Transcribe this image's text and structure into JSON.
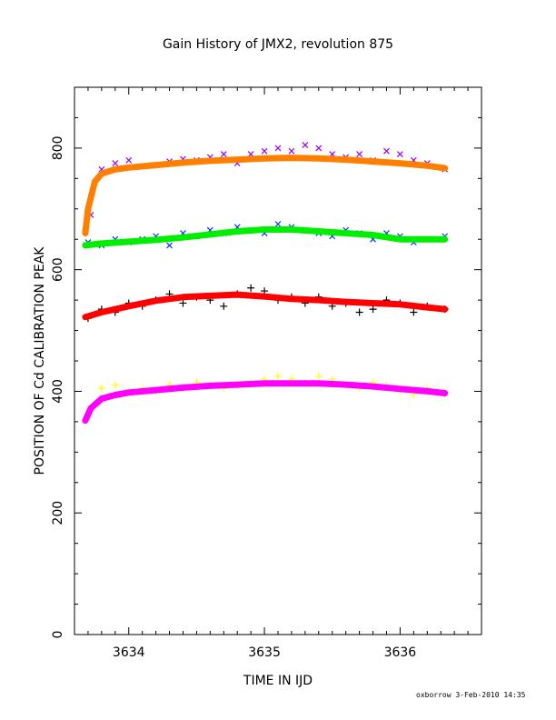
{
  "chart_data": {
    "type": "scatter",
    "title": "Gain History of JMX2, revolution 875",
    "xlabel": "TIME IN IJD",
    "ylabel": "POSITION OF Cd CALIBRATION PEAK",
    "xlim": [
      3633.6,
      3636.6
    ],
    "ylim": [
      0,
      900
    ],
    "xticks": [
      3634,
      3635,
      3636
    ],
    "xtick_labels": [
      "3634",
      "3635",
      "3636"
    ],
    "yticks": [
      0,
      200,
      400,
      600,
      800
    ],
    "ytick_labels": [
      "0",
      "200",
      "400",
      "600",
      "800"
    ],
    "grid": false,
    "legend": "none",
    "series": [
      {
        "marker": "x",
        "color": "#9900ff",
        "role": "points",
        "x": [
          3633.72,
          3633.8,
          3633.9,
          3634.0,
          3634.1,
          3634.2,
          3634.3,
          3634.4,
          3634.5,
          3634.6,
          3634.7,
          3634.8,
          3634.9,
          3635.0,
          3635.1,
          3635.2,
          3635.3,
          3635.4,
          3635.5,
          3635.6,
          3635.7,
          3635.8,
          3635.9,
          3636.0,
          3636.1,
          3636.2,
          3636.33
        ],
        "y": [
          690,
          765,
          775,
          780,
          770,
          772,
          778,
          782,
          780,
          785,
          790,
          775,
          790,
          795,
          800,
          795,
          805,
          800,
          790,
          785,
          790,
          780,
          795,
          790,
          780,
          775,
          765
        ]
      },
      {
        "marker": "line",
        "color": "#ff8000",
        "role": "fit",
        "x": [
          3633.68,
          3633.7,
          3633.75,
          3633.8,
          3633.9,
          3634.0,
          3634.2,
          3634.4,
          3634.6,
          3634.8,
          3635.0,
          3635.2,
          3635.4,
          3635.6,
          3635.8,
          3636.0,
          3636.2,
          3636.33
        ],
        "y": [
          660,
          700,
          745,
          758,
          765,
          768,
          772,
          776,
          779,
          781,
          783,
          784,
          783,
          781,
          778,
          775,
          771,
          767
        ]
      },
      {
        "marker": "x",
        "color": "#0033ff",
        "role": "points",
        "x": [
          3633.7,
          3633.8,
          3633.9,
          3634.0,
          3634.1,
          3634.2,
          3634.3,
          3634.4,
          3634.5,
          3634.6,
          3634.7,
          3634.8,
          3634.9,
          3635.0,
          3635.1,
          3635.2,
          3635.3,
          3635.4,
          3635.5,
          3635.6,
          3635.7,
          3635.8,
          3635.9,
          3636.0,
          3636.1,
          3636.2,
          3636.33
        ],
        "y": [
          645,
          640,
          650,
          645,
          650,
          655,
          640,
          660,
          655,
          665,
          660,
          670,
          665,
          660,
          675,
          670,
          665,
          660,
          655,
          665,
          660,
          650,
          660,
          655,
          645,
          650,
          655
        ]
      },
      {
        "marker": "line",
        "color": "#00ee00",
        "role": "fit",
        "x": [
          3633.68,
          3633.8,
          3634.0,
          3634.2,
          3634.4,
          3634.6,
          3634.8,
          3635.0,
          3635.2,
          3635.4,
          3635.6,
          3635.8,
          3636.0,
          3636.2,
          3636.33
        ],
        "y": [
          640,
          643,
          646,
          649,
          653,
          658,
          663,
          666,
          666,
          663,
          660,
          657,
          650,
          650,
          650
        ]
      },
      {
        "marker": "+",
        "color": "#000000",
        "role": "points",
        "x": [
          3633.7,
          3633.8,
          3633.9,
          3634.0,
          3634.1,
          3634.2,
          3634.3,
          3634.4,
          3634.5,
          3634.6,
          3634.7,
          3634.8,
          3634.9,
          3635.0,
          3635.1,
          3635.2,
          3635.3,
          3635.4,
          3635.5,
          3635.6,
          3635.7,
          3635.8,
          3635.9,
          3636.0,
          3636.1,
          3636.2,
          3636.33
        ],
        "y": [
          520,
          535,
          530,
          545,
          540,
          550,
          560,
          545,
          555,
          550,
          540,
          560,
          570,
          565,
          550,
          555,
          545,
          555,
          540,
          545,
          530,
          535,
          550,
          545,
          530,
          540,
          535
        ]
      },
      {
        "marker": "line",
        "color": "#ff0000",
        "role": "fit",
        "x": [
          3633.68,
          3633.8,
          3634.0,
          3634.2,
          3634.4,
          3634.6,
          3634.8,
          3635.0,
          3635.2,
          3635.4,
          3635.6,
          3635.8,
          3636.0,
          3636.2,
          3636.33
        ],
        "y": [
          522,
          530,
          540,
          549,
          555,
          557,
          559,
          556,
          552,
          550,
          547,
          545,
          543,
          538,
          535
        ]
      },
      {
        "marker": "+",
        "color": "#ffff00",
        "role": "points",
        "x": [
          3633.7,
          3633.8,
          3633.9,
          3634.0,
          3634.1,
          3634.2,
          3634.3,
          3634.4,
          3634.5,
          3634.6,
          3634.7,
          3634.8,
          3634.9,
          3635.0,
          3635.1,
          3635.2,
          3635.3,
          3635.4,
          3635.5,
          3635.6,
          3635.7,
          3635.8,
          3635.9,
          3636.0,
          3636.1,
          3636.2,
          3636.33
        ],
        "y": [
          360,
          405,
          410,
          400,
          405,
          400,
          410,
          405,
          415,
          410,
          405,
          410,
          415,
          420,
          425,
          420,
          415,
          425,
          420,
          410,
          405,
          415,
          410,
          400,
          395,
          405,
          395
        ]
      },
      {
        "marker": "line",
        "color": "#ff00ff",
        "role": "fit",
        "x": [
          3633.68,
          3633.72,
          3633.8,
          3633.9,
          3634.0,
          3634.2,
          3634.4,
          3634.6,
          3634.8,
          3635.0,
          3635.2,
          3635.4,
          3635.6,
          3635.8,
          3636.0,
          3636.2,
          3636.33
        ],
        "y": [
          352,
          372,
          388,
          394,
          398,
          402,
          406,
          409,
          411,
          413,
          413,
          413,
          411,
          408,
          404,
          400,
          397
        ]
      }
    ]
  },
  "footer": "oxborrow  3-Feb-2010 14:35"
}
